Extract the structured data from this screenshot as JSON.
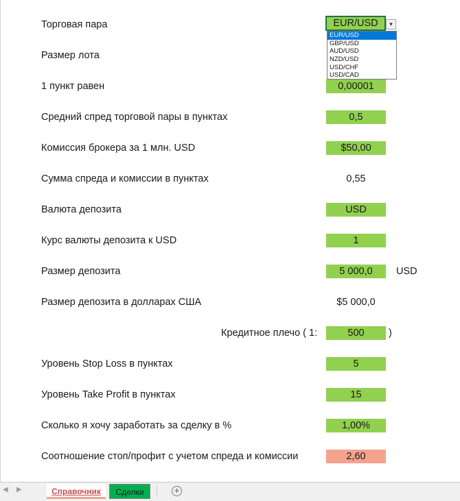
{
  "rows": {
    "pair": {
      "label": "Торговая пара",
      "value": "EUR/USD"
    },
    "lot": {
      "label": "Размер лота"
    },
    "pip": {
      "label": "1 пункт равен",
      "value": "0,00001"
    },
    "spread": {
      "label": "Средний спред торговой пары в пунктах",
      "value": "0,5"
    },
    "commission": {
      "label": "Комиссия брокера за 1 млн. USD",
      "value": "$50,00"
    },
    "sum": {
      "label": "Сумма спреда и комиссии в пунктах",
      "value": "0,55"
    },
    "currency": {
      "label": "Валюта депозита",
      "value": "USD"
    },
    "rate": {
      "label": "Курс валюты депозита к USD",
      "value": "1"
    },
    "deposit": {
      "label": "Размер депозита",
      "value": "5 000,0",
      "unit": "USD"
    },
    "deposit_usd": {
      "label": "Размер депозита в долларах США",
      "value": "$5 000,0"
    },
    "leverage": {
      "label": "Кредитное плечо ( 1:",
      "value": "500",
      "close": ")"
    },
    "stop_loss": {
      "label": "Уровень Stop Loss в пунктах",
      "value": "5"
    },
    "take_profit": {
      "label": "Уровень Take Profit в пунктах",
      "value": "15"
    },
    "target": {
      "label": "Сколько я хочу заработать за сделку в %",
      "value": "1,00%"
    },
    "ratio": {
      "label": "Соотношение стоп/профит с учетом спреда и комиссии",
      "value": "2,60"
    }
  },
  "dropdown": {
    "options": [
      "EUR/USD",
      "GBP/USD",
      "AUD/USD",
      "NZD/USD",
      "USD/CHF",
      "USD/CAD"
    ],
    "arrow": "▼"
  },
  "tabs": {
    "prev": "◀",
    "next": "▶",
    "reference": "Справочник",
    "deals": "Сделки",
    "add": "+"
  },
  "colors": {
    "input_green": "#92d050",
    "result_salmon": "#f4a38e",
    "tab_green": "#00b050"
  }
}
